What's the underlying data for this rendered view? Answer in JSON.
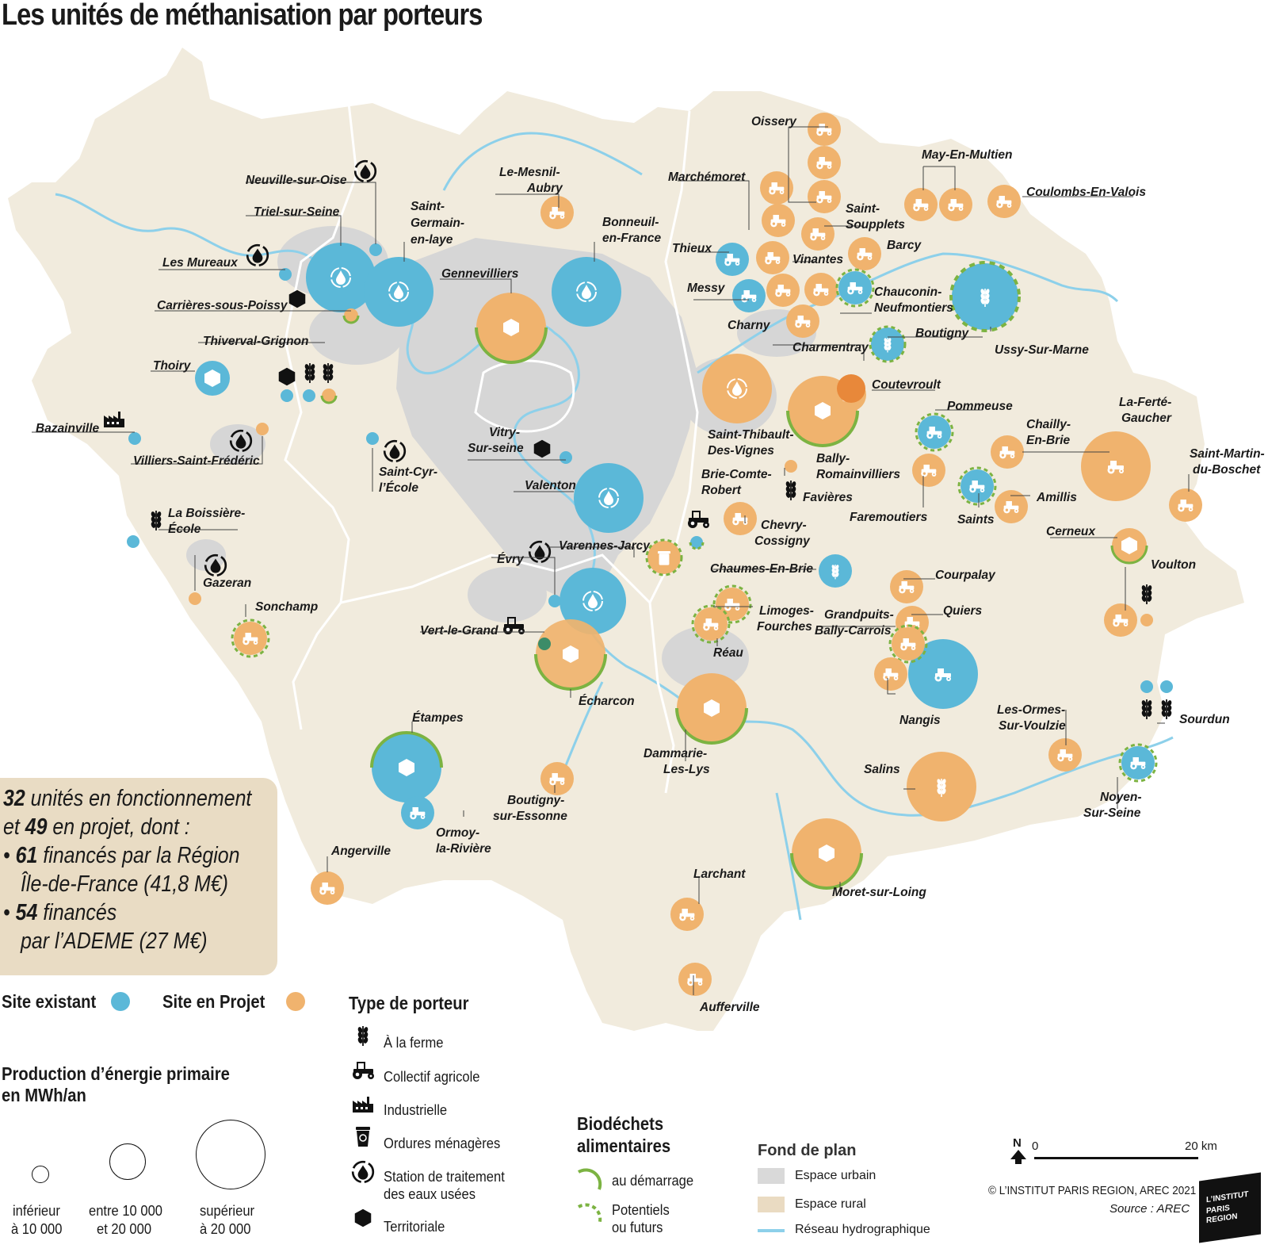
{
  "title": "Les unités de méthanisation par porteurs",
  "colors": {
    "existing": "#5bb8d8",
    "project": "#f0b36e",
    "urban": "#d9d9d9",
    "rural": "#f1ebdd",
    "water": "#8dd0ea",
    "biowaste_green": "#7cb342"
  },
  "summary": {
    "line1_num": "32",
    "line1_text": " unités en fonctionnement",
    "line2_pre": "et ",
    "line2_num": "49",
    "line2_text": " en projet, dont :",
    "line3_pre": "• ",
    "line3_num": "61",
    "line3_text": " financés par la Région",
    "line4": "Île-de-France (41,8 M€)",
    "line5_pre": "• ",
    "line5_num": "54",
    "line5_text": " financés",
    "line6": "par l’ADEME (27 M€)"
  },
  "legend": {
    "existing": "Site existant",
    "project": "Site en Projet",
    "production_title_1": "Production d’énergie primaire",
    "production_title_2": "en MWh/an",
    "size_small_1": "inférieur",
    "size_small_2": "à 10 000",
    "size_mid_1": "entre 10 000",
    "size_mid_2": "et 20 000",
    "size_large_1": "supérieur",
    "size_large_2": "à 20 000",
    "porteur_title": "Type de porteur",
    "porteurs": [
      {
        "icon": "wheat-icon",
        "label": "À la ferme"
      },
      {
        "icon": "tractor-icon",
        "label": "Collectif agricole"
      },
      {
        "icon": "factory-icon",
        "label": "Industrielle"
      },
      {
        "icon": "recycle-bin-icon",
        "label": "Ordures ménagères"
      },
      {
        "icon": "water-drop-icon",
        "label": "Station de traitement"
      },
      {
        "icon": "hexagon-icon",
        "label": "Territoriale"
      }
    ],
    "porteur_water_line2": "des eaux usées",
    "biodechets_title_1": "Biodéchets",
    "biodechets_title_2": "alimentaires",
    "bio_start": "au démarrage",
    "bio_future_1": "Potentiels",
    "bio_future_2": "ou futurs",
    "fond_title": "Fond de plan",
    "fond_urban": "Espace urbain",
    "fond_rural": "Espace rural",
    "fond_water": "Réseau hydrographique",
    "north": "N",
    "scale_0": "0",
    "scale_20": "20 km",
    "credit": "© L’INSTITUT PARIS REGION, AREC 2021",
    "source": "Source : AREC",
    "logo_1": "L’INSTITUT",
    "logo_2": "PARIS",
    "logo_3": "REGION"
  },
  "sites": [
    {
      "name": "Neuville-sur-Oise",
      "status": "existant",
      "size": "small",
      "icon": "water-drop-icon"
    },
    {
      "name": "Triel-sur-Seine",
      "status": "existant",
      "size": "large",
      "icon": "water-drop-icon"
    },
    {
      "name": "Les Mureaux",
      "status": "existant",
      "size": "small",
      "icon": "water-drop-icon"
    },
    {
      "name": "Carrières-sous-Poissy",
      "status": "projet",
      "size": "small",
      "icon": "hexagon-icon"
    },
    {
      "name": "Saint-Germain-en-laye",
      "status": "existant",
      "size": "large",
      "icon": "water-drop-icon"
    },
    {
      "name": "Gennevilliers",
      "status": "projet",
      "size": "large",
      "icon": "hexagon-icon"
    },
    {
      "name": "Le-Mesnil-Aubry",
      "status": "projet",
      "size": "small",
      "icon": "tractor-icon"
    },
    {
      "name": "Bonneuil-en-France",
      "status": "existant",
      "size": "large",
      "icon": "water-drop-icon"
    },
    {
      "name": "Thiverval-Grignon",
      "status": "existant",
      "size": "small",
      "icon": "wheat-icon"
    },
    {
      "name": "Thoiry",
      "status": "existant",
      "size": "small",
      "icon": "hexagon-icon"
    },
    {
      "name": "Bazainville",
      "status": "existant",
      "size": "small",
      "icon": "factory-icon"
    },
    {
      "name": "Villiers-Saint-Frédéric",
      "status": "projet",
      "size": "small",
      "icon": "water-drop-icon"
    },
    {
      "name": "Saint-Cyr-l’École",
      "status": "existant",
      "size": "small",
      "icon": "water-drop-icon"
    },
    {
      "name": "Vitry-Sur-seine",
      "status": "existant",
      "size": "small",
      "icon": "hexagon-icon"
    },
    {
      "name": "Valenton",
      "status": "existant",
      "size": "large",
      "icon": "water-drop-icon"
    },
    {
      "name": "La Boissière-École",
      "status": "existant",
      "size": "small",
      "icon": "wheat-icon"
    },
    {
      "name": "Gazeran",
      "status": "projet",
      "size": "small",
      "icon": "water-drop-icon"
    },
    {
      "name": "Sonchamp",
      "status": "projet",
      "size": "small",
      "icon": "tractor-icon"
    },
    {
      "name": "Évry",
      "status": "existant",
      "size": "small",
      "icon": "water-drop-icon"
    },
    {
      "name": "Varennes-Jarcy",
      "status": "projet",
      "size": "small",
      "icon": "recycle-bin-icon"
    },
    {
      "name": "Vert-le-Grand",
      "status": "existant",
      "size": "small",
      "icon": "tractor-icon"
    },
    {
      "name": "Écharcon",
      "status": "projet",
      "size": "large",
      "icon": "hexagon-icon"
    },
    {
      "name": "Étampes",
      "status": "existant",
      "size": "large",
      "icon": "hexagon-icon"
    },
    {
      "name": "Ormoy-la-Rivière",
      "status": "existant",
      "size": "small",
      "icon": "tractor-icon"
    },
    {
      "name": "Boutigny-sur-Essonne",
      "status": "projet",
      "size": "small",
      "icon": "tractor-icon"
    },
    {
      "name": "Angerville",
      "status": "projet",
      "size": "small",
      "icon": "tractor-icon"
    },
    {
      "name": "Larchant",
      "status": "projet",
      "size": "small",
      "icon": "tractor-icon"
    },
    {
      "name": "Aufferville",
      "status": "projet",
      "size": "small",
      "icon": "tractor-icon"
    },
    {
      "name": "Oissery",
      "status": "projet",
      "size": "small",
      "icon": "tractor-icon"
    },
    {
      "name": "Marchémoret",
      "status": "projet",
      "size": "small",
      "icon": "tractor-icon"
    },
    {
      "name": "May-En-Multien",
      "status": "projet",
      "size": "small",
      "icon": "tractor-icon"
    },
    {
      "name": "Coulombs-En-Valois",
      "status": "projet",
      "size": "small",
      "icon": "tractor-icon"
    },
    {
      "name": "Saint-Soupplets",
      "status": "projet",
      "size": "small",
      "icon": "tractor-icon"
    },
    {
      "name": "Barcy",
      "status": "projet",
      "size": "small",
      "icon": "tractor-icon"
    },
    {
      "name": "Thieux",
      "status": "existant",
      "size": "small",
      "icon": "tractor-icon"
    },
    {
      "name": "Vinantes",
      "status": "projet",
      "size": "small",
      "icon": "tractor-icon"
    },
    {
      "name": "Messy",
      "status": "existant",
      "size": "small",
      "icon": "tractor-icon"
    },
    {
      "name": "Charny",
      "status": "projet",
      "size": "small",
      "icon": "tractor-icon"
    },
    {
      "name": "Chauconin-Neufmontiers",
      "status": "existant",
      "size": "small",
      "icon": "tractor-icon"
    },
    {
      "name": "Charmentray",
      "status": "projet",
      "size": "small",
      "icon": "tractor-icon"
    },
    {
      "name": "Boutigny",
      "status": "existant",
      "size": "small",
      "icon": "wheat-icon"
    },
    {
      "name": "Ussy-Sur-Marne",
      "status": "existant",
      "size": "large",
      "icon": "wheat-icon"
    },
    {
      "name": "Coutevroult",
      "status": "projet",
      "size": "small",
      "icon": "tractor-icon"
    },
    {
      "name": "Saint-Thibault-Des-Vignes",
      "status": "projet",
      "size": "large",
      "icon": "water-drop-icon"
    },
    {
      "name": "Bally-Romainvilliers",
      "status": "projet",
      "size": "large",
      "icon": "hexagon-icon"
    },
    {
      "name": "Pommeuse",
      "status": "existant",
      "size": "small",
      "icon": "tractor-icon"
    },
    {
      "name": "Chailly-En-Brie",
      "status": "projet",
      "size": "small",
      "icon": "tractor-icon"
    },
    {
      "name": "La-Ferté-Gaucher",
      "status": "projet",
      "size": "large",
      "icon": "tractor-icon"
    },
    {
      "name": "Saint-Martin-du-Boschet",
      "status": "projet",
      "size": "small",
      "icon": "tractor-icon"
    },
    {
      "name": "Favières",
      "status": "projet",
      "size": "small",
      "icon": "wheat-icon"
    },
    {
      "name": "Faremoutiers",
      "status": "projet",
      "size": "small",
      "icon": "tractor-icon"
    },
    {
      "name": "Saints",
      "status": "existant",
      "size": "small",
      "icon": "tractor-icon"
    },
    {
      "name": "Amillis",
      "status": "projet",
      "size": "small",
      "icon": "tractor-icon"
    },
    {
      "name": "Brie-Comte-Robert",
      "status": "existant",
      "size": "small",
      "icon": "tractor-icon"
    },
    {
      "name": "Chevry-Cossigny",
      "status": "projet",
      "size": "small",
      "icon": "tractor-icon"
    },
    {
      "name": "Cerneux",
      "status": "projet",
      "size": "small",
      "icon": "hexagon-icon"
    },
    {
      "name": "Chaumes-En-Brie",
      "status": "existant",
      "size": "small",
      "icon": "wheat-icon"
    },
    {
      "name": "Voulton",
      "status": "projet",
      "size": "small",
      "icon": "wheat-icon"
    },
    {
      "name": "Courpalay",
      "status": "projet",
      "size": "small",
      "icon": "tractor-icon"
    },
    {
      "name": "Limoges-Fourches",
      "status": "projet",
      "size": "small",
      "icon": "tractor-icon"
    },
    {
      "name": "Grandpuits-Bally-Carrois",
      "status": "projet",
      "size": "small",
      "icon": "tractor-icon"
    },
    {
      "name": "Quiers",
      "status": "projet",
      "size": "small",
      "icon": "tractor-icon"
    },
    {
      "name": "Réau",
      "status": "projet",
      "size": "small",
      "icon": "tractor-icon"
    },
    {
      "name": "Nangis",
      "status": "existant",
      "size": "large",
      "icon": "tractor-icon"
    },
    {
      "name": "Dammarie-Les-Lys",
      "status": "projet",
      "size": "large",
      "icon": "hexagon-icon"
    },
    {
      "name": "Les-Ormes-Sur-Voulzie",
      "status": "projet",
      "size": "small",
      "icon": "tractor-icon"
    },
    {
      "name": "Sourdun",
      "status": "existant",
      "size": "small",
      "icon": "wheat-icon"
    },
    {
      "name": "Noyen-Sur-Seine",
      "status": "existant",
      "size": "small",
      "icon": "tractor-icon"
    },
    {
      "name": "Salins",
      "status": "projet",
      "size": "large",
      "icon": "wheat-icon"
    },
    {
      "name": "Moret-sur-Loing",
      "status": "projet",
      "size": "large",
      "icon": "hexagon-icon"
    }
  ]
}
